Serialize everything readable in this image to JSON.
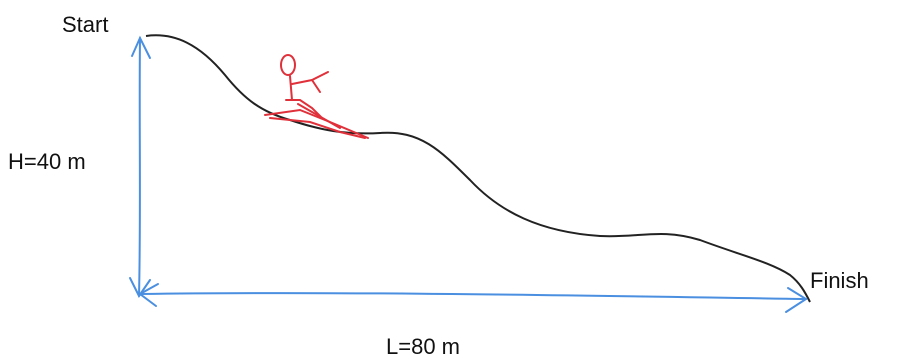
{
  "labels": {
    "start": "Start",
    "height": "H=40 m",
    "finish": "Finish",
    "length": "L=80 m"
  }
}
